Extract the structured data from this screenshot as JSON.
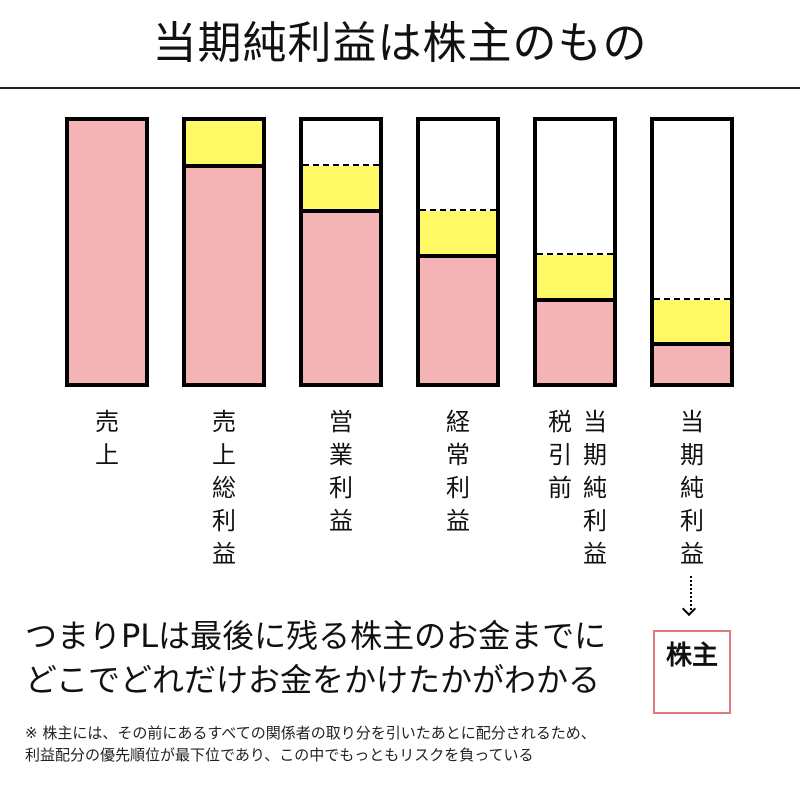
{
  "title": "当期純利益は株主のもの",
  "colors": {
    "profit": "#f4b4b6",
    "deduction": "#fef965",
    "owner_border": "#e07a7a"
  },
  "bars": [
    {
      "label": "売上",
      "label_cols": [
        "売上"
      ]
    },
    {
      "label": "売上総利益",
      "label_cols": [
        "売上総利益"
      ]
    },
    {
      "label": "営業利益",
      "label_cols": [
        "営業利益"
      ]
    },
    {
      "label": "経常利益",
      "label_cols": [
        "経常利益"
      ]
    },
    {
      "label": "税引前当期純利益",
      "label_cols": [
        "税引前",
        "当期純利益"
      ]
    },
    {
      "label": "当期純利益",
      "label_cols": [
        "当期純利益"
      ]
    }
  ],
  "owner": {
    "label": "株主"
  },
  "summary": {
    "line1": "つまりPLは最後に残る株主のお金までに",
    "line2": "どこでどれだけお金をかけたかがわかる"
  },
  "note": {
    "line1": "※ 株主には、その前にあるすべての関係者の取り分を引いたあとに配分されるため、",
    "line2": "利益配分の優先順位が最下位であり、この中でもっともリスクを負っている"
  },
  "chart_data": {
    "type": "bar",
    "title": "当期純利益は株主のもの",
    "categories": [
      "売上",
      "売上総利益",
      "営業利益",
      "経常利益",
      "税引前当期純利益",
      "当期純利益"
    ],
    "series": [
      {
        "name": "remaining (pink)",
        "values": [
          100,
          83,
          67,
          50,
          33,
          17
        ]
      },
      {
        "name": "deducted at step (yellow)",
        "values": [
          0,
          17,
          17,
          17,
          17,
          17
        ]
      }
    ],
    "ylim": [
      0,
      100
    ],
    "xlabel": "",
    "ylabel": ""
  }
}
